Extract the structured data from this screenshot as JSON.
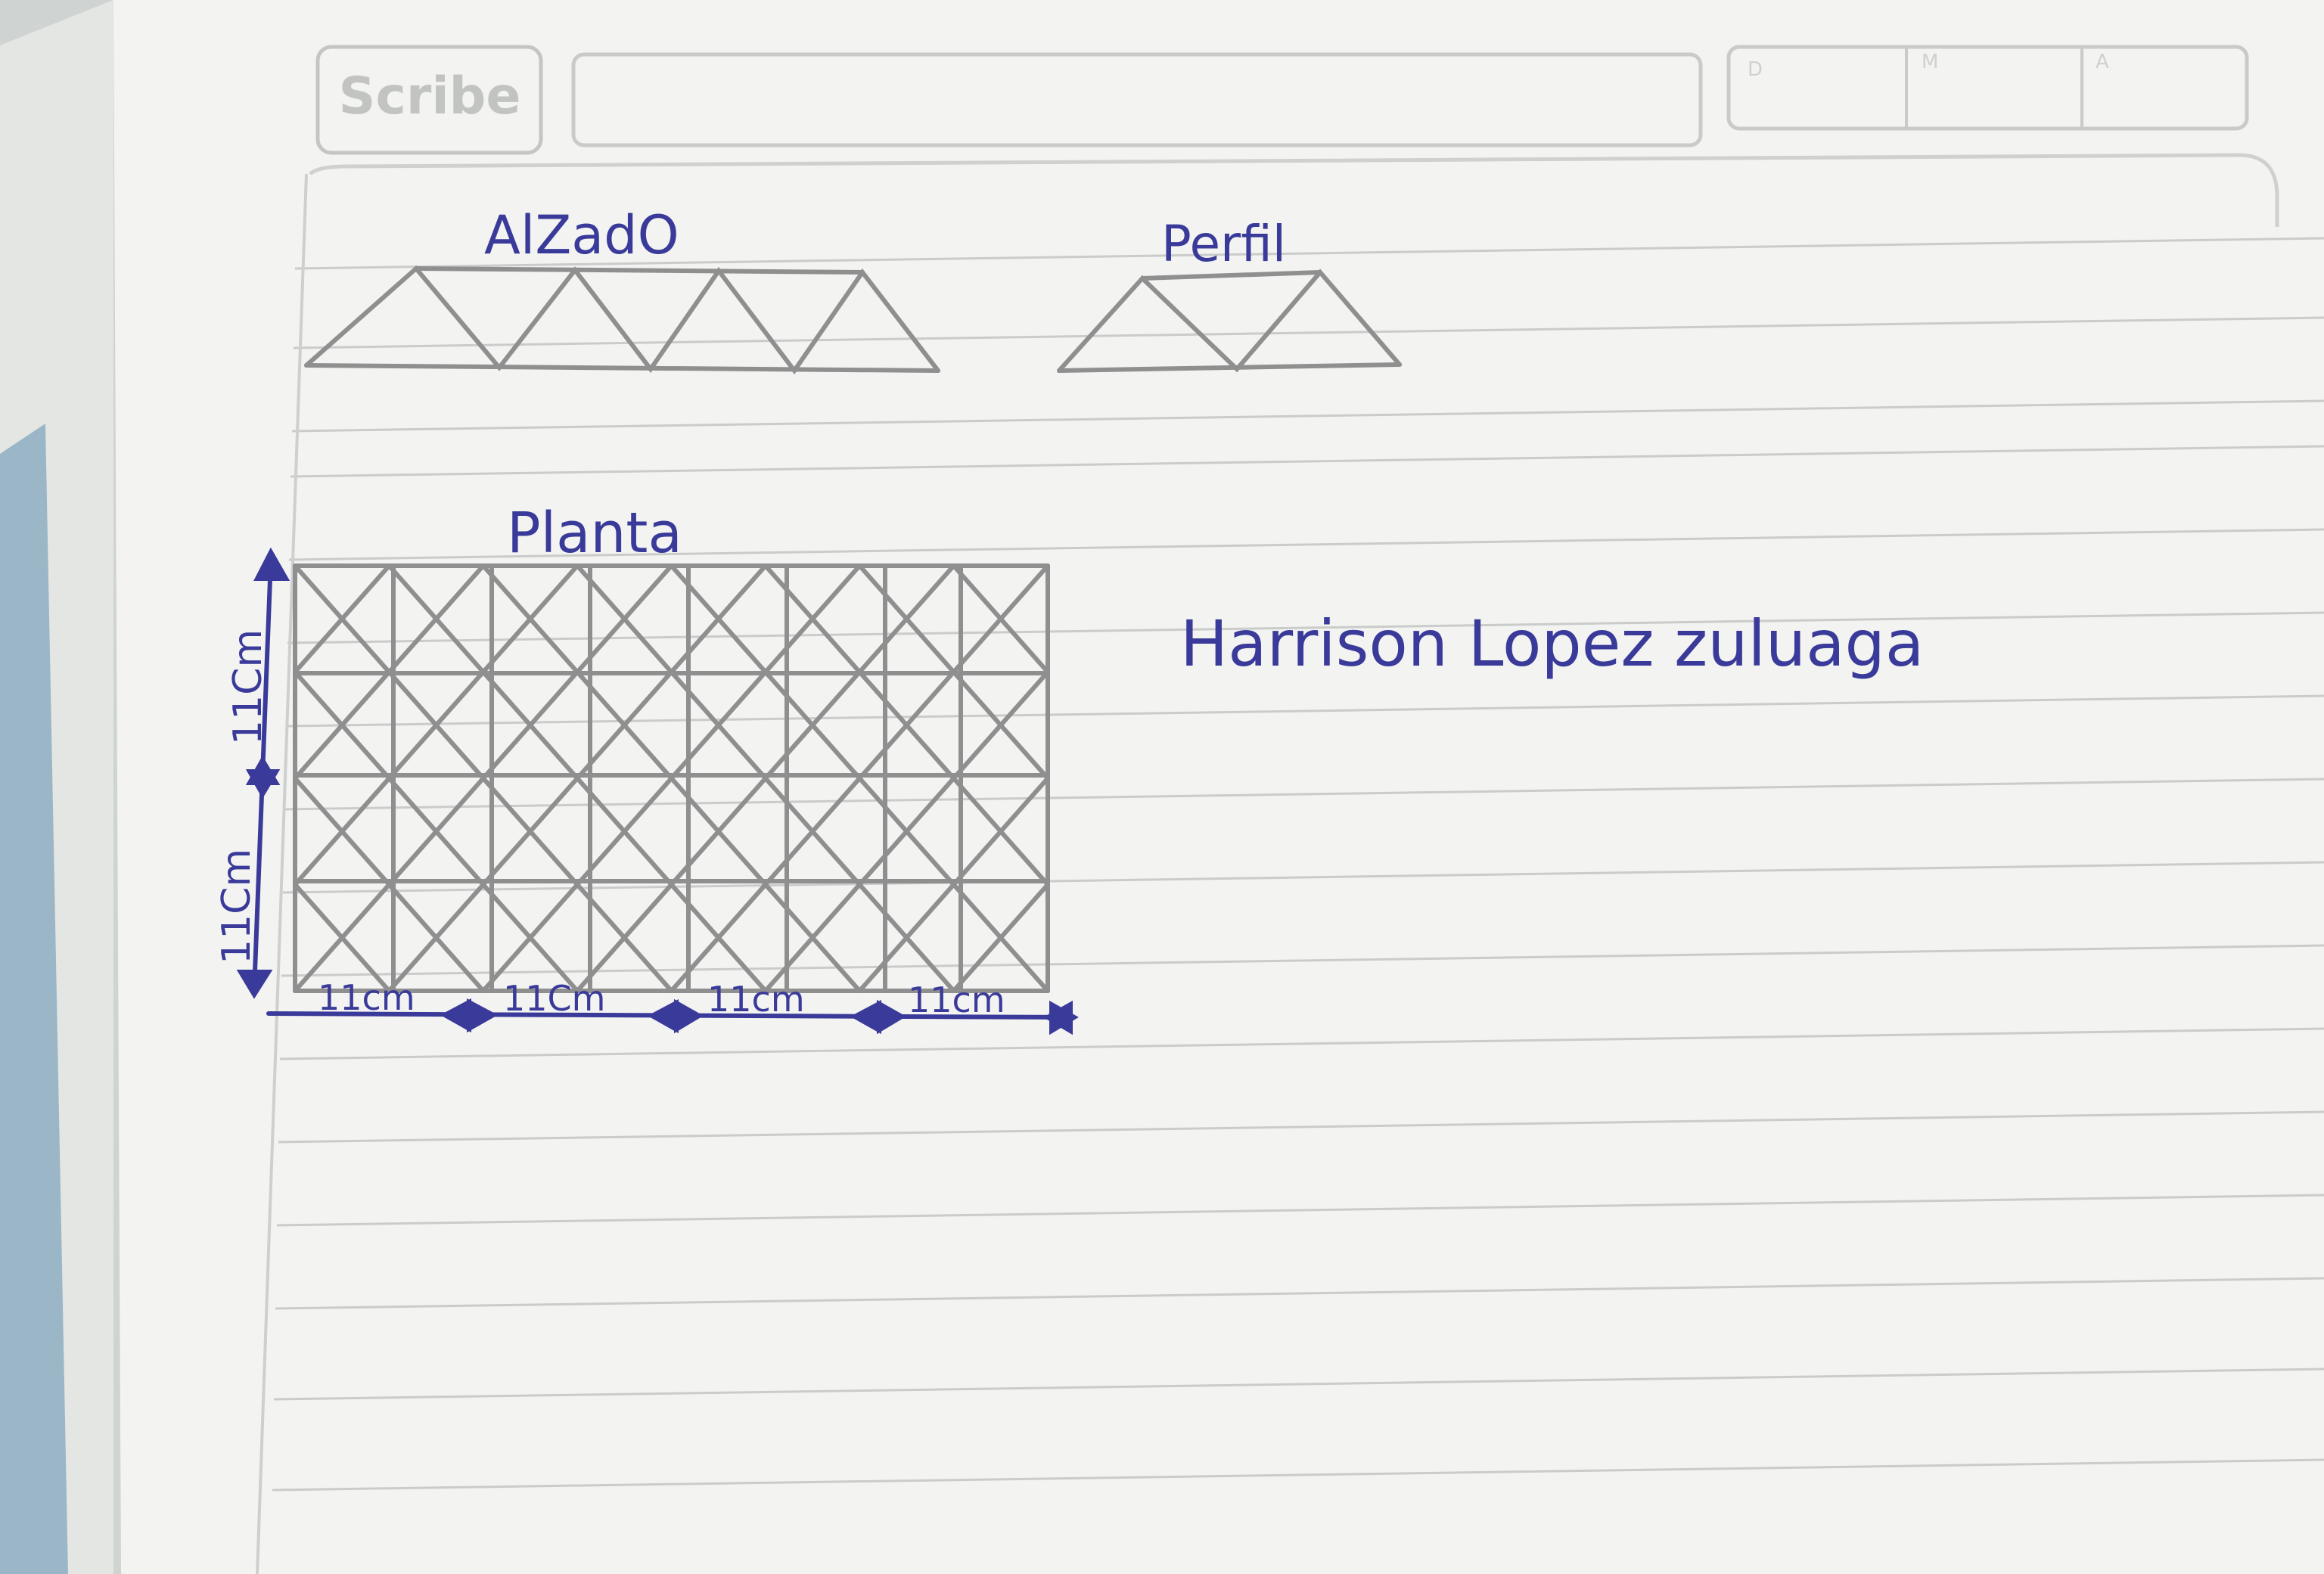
{
  "header": {
    "brand": "Scribe",
    "date_labels": [
      "D",
      "M",
      "A"
    ]
  },
  "drawings": {
    "elevation_title": "AlZadO",
    "profile_title": "Perfil",
    "plan_title": "Planta"
  },
  "dimensions": {
    "vertical": [
      "11Cm",
      "11Cm"
    ],
    "horizontal": [
      "11cm",
      "11Cm",
      "11cm",
      "11cm"
    ]
  },
  "author": "Harrison Lopez zuluaga",
  "colors": {
    "ink": "#3a3a9a",
    "pencil": "#8f8f8f",
    "paper": "#f3f4f1",
    "rule": "#c9ccca"
  }
}
